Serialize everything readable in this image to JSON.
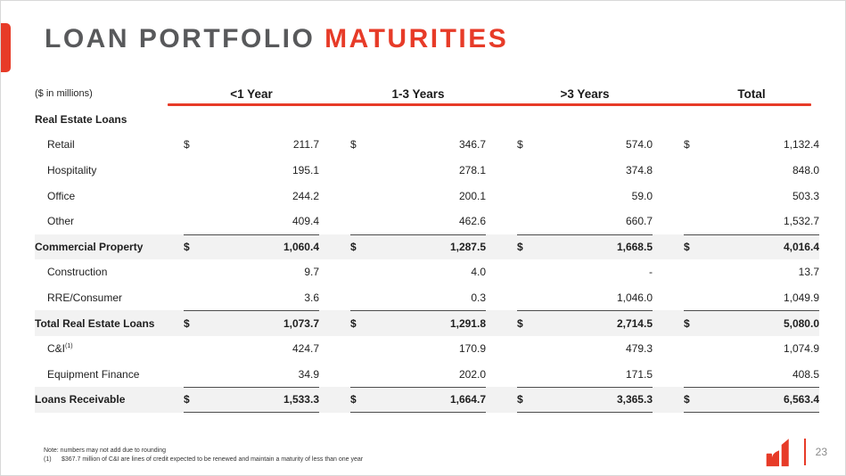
{
  "slide": {
    "title_primary": "LOAN PORTFOLIO",
    "title_accent": "MATURITIES",
    "page_number": "23"
  },
  "colors": {
    "accent_red": "#e73b28",
    "title_gray": "#58595b",
    "band_gray": "#f2f2f2",
    "border_dark": "#4d4d4d"
  },
  "table": {
    "unit_label": "($ in millions)",
    "dollar_sign": "$",
    "columns": [
      "<1 Year",
      "1-3 Years",
      ">3 Years",
      "Total"
    ],
    "rows": [
      {
        "label": "Real Estate Loans",
        "style": "section",
        "dollar": false,
        "values": [
          null,
          null,
          null,
          null
        ]
      },
      {
        "label": "Retail",
        "style": "item",
        "dollar": true,
        "values": [
          "211.7",
          "346.7",
          "574.0",
          "1,132.4"
        ]
      },
      {
        "label": "Hospitality",
        "style": "item",
        "dollar": false,
        "values": [
          "195.1",
          "278.1",
          "374.8",
          "848.0"
        ]
      },
      {
        "label": "Office",
        "style": "item",
        "dollar": false,
        "values": [
          "244.2",
          "200.1",
          "59.0",
          "503.3"
        ]
      },
      {
        "label": "Other",
        "style": "item",
        "dollar": false,
        "values": [
          "409.4",
          "462.6",
          "660.7",
          "1,532.7"
        ]
      },
      {
        "label": "Commercial Property",
        "style": "subtotal",
        "dollar": true,
        "values": [
          "1,060.4",
          "1,287.5",
          "1,668.5",
          "4,016.4"
        ]
      },
      {
        "label": "Construction",
        "style": "item",
        "dollar": false,
        "values": [
          "9.7",
          "4.0",
          "-",
          "13.7"
        ]
      },
      {
        "label": "RRE/Consumer",
        "style": "item",
        "dollar": false,
        "values": [
          "3.6",
          "0.3",
          "1,046.0",
          "1,049.9"
        ]
      },
      {
        "label": "Total Real Estate Loans",
        "style": "subtotal",
        "dollar": true,
        "values": [
          "1,073.7",
          "1,291.8",
          "2,714.5",
          "5,080.0"
        ]
      },
      {
        "label": "C&I",
        "sup": "(1)",
        "style": "item",
        "dollar": false,
        "values": [
          "424.7",
          "170.9",
          "479.3",
          "1,074.9"
        ]
      },
      {
        "label": "Equipment Finance",
        "style": "item",
        "dollar": false,
        "values": [
          "34.9",
          "202.0",
          "171.5",
          "408.5"
        ]
      },
      {
        "label": "Loans Receivable",
        "style": "total",
        "dollar": true,
        "values": [
          "1,533.3",
          "1,664.7",
          "3,365.3",
          "6,563.4"
        ]
      }
    ]
  },
  "footnotes": {
    "note": "Note: numbers may not add due to rounding",
    "fn1_marker": "(1)",
    "fn1_text": "$367.7 million of C&I are lines of credit expected to be renewed and maintain a maturity of less than one year"
  }
}
